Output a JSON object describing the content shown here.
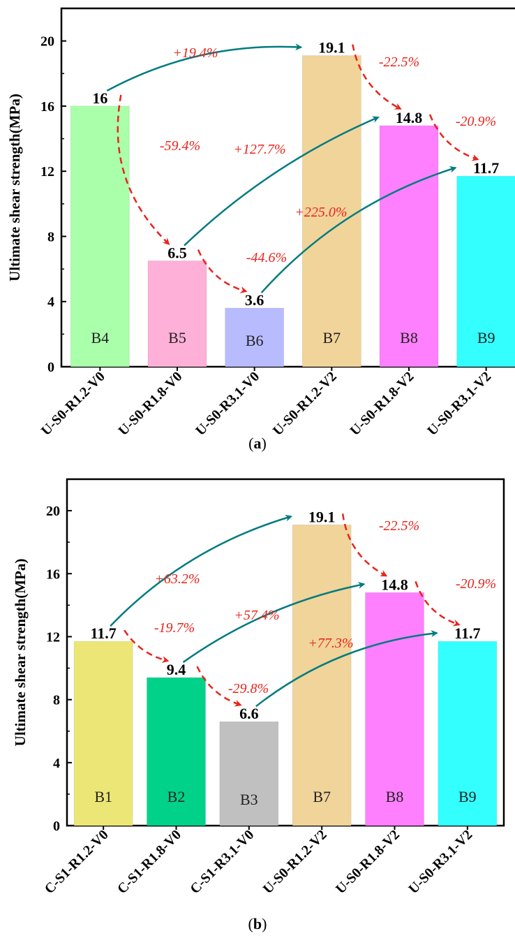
{
  "chart_data": [
    {
      "type": "bar",
      "panel": "(a)",
      "panel_letter": "a",
      "ylabel": "Ultimate shear strength(MPa)",
      "ylim": [
        0,
        22
      ],
      "yticks": [
        0,
        4,
        8,
        12,
        16,
        20
      ],
      "categories": [
        "U-S0-R1.2-V0",
        "U-S0-R1.8-V0",
        "U-S0-R3.1-V0",
        "U-S0-R1.2-V2",
        "U-S0-R1.8-V2",
        "U-S0-R3.1-V2"
      ],
      "values": [
        16,
        6.5,
        3.6,
        19.1,
        14.8,
        11.7
      ],
      "value_labels": [
        "16",
        "6.5",
        "3.6",
        "19.1",
        "14.8",
        "11.7"
      ],
      "bar_ids": [
        "B4",
        "B5",
        "B6",
        "B7",
        "B8",
        "B9"
      ],
      "colors": [
        "#aaffaa",
        "#ffb0d8",
        "#b8bcff",
        "#f0d49a",
        "#ff80ff",
        "#33ffff"
      ],
      "annotations": [
        {
          "from": 0,
          "to": 3,
          "text": "+19.4%",
          "kind": "increase"
        },
        {
          "from": 0,
          "to": 1,
          "text": "-59.4%",
          "kind": "decrease"
        },
        {
          "from": 1,
          "to": 4,
          "text": "+127.7%",
          "kind": "increase"
        },
        {
          "from": 1,
          "to": 2,
          "text": "-44.6%",
          "kind": "decrease"
        },
        {
          "from": 2,
          "to": 5,
          "text": "+225.0%",
          "kind": "increase"
        },
        {
          "from": 3,
          "to": 4,
          "text": "-22.5%",
          "kind": "decrease"
        },
        {
          "from": 4,
          "to": 5,
          "text": "-20.9%",
          "kind": "decrease"
        }
      ]
    },
    {
      "type": "bar",
      "panel": "(b)",
      "panel_letter": "b",
      "ylabel": "Ultimate shear strength(MPa)",
      "ylim": [
        0,
        22
      ],
      "yticks": [
        0,
        4,
        8,
        12,
        16,
        20
      ],
      "categories": [
        "C-S1-R1.2-V0",
        "C-S1-R1.8-V0",
        "C-S1-R3.1-V0",
        "U-S0-R1.2-V2",
        "U-S0-R1.8-V2",
        "U-S0-R3.1-V2"
      ],
      "values": [
        11.7,
        9.4,
        6.6,
        19.1,
        14.8,
        11.7
      ],
      "value_labels": [
        "11.7",
        "9.4",
        "6.6",
        "19.1",
        "14.8",
        "11.7"
      ],
      "bar_ids": [
        "B1",
        "B2",
        "B3",
        "B7",
        "B8",
        "B9"
      ],
      "colors": [
        "#ece676",
        "#00d289",
        "#c0c0c0",
        "#f0d49a",
        "#ff80ff",
        "#33ffff"
      ],
      "annotations": [
        {
          "from": 0,
          "to": 3,
          "text": "+63.2%",
          "kind": "increase"
        },
        {
          "from": 0,
          "to": 1,
          "text": "-19.7%",
          "kind": "decrease"
        },
        {
          "from": 1,
          "to": 4,
          "text": "+57.4%",
          "kind": "increase"
        },
        {
          "from": 1,
          "to": 2,
          "text": "-29.8%",
          "kind": "decrease"
        },
        {
          "from": 2,
          "to": 5,
          "text": "+77.3%",
          "kind": "increase"
        },
        {
          "from": 3,
          "to": 4,
          "text": "-22.5%",
          "kind": "decrease"
        },
        {
          "from": 4,
          "to": 5,
          "text": "-20.9%",
          "kind": "decrease"
        }
      ]
    }
  ],
  "arrow_colors": {
    "increase": "#007b7f",
    "decrease": "#e8241c"
  }
}
